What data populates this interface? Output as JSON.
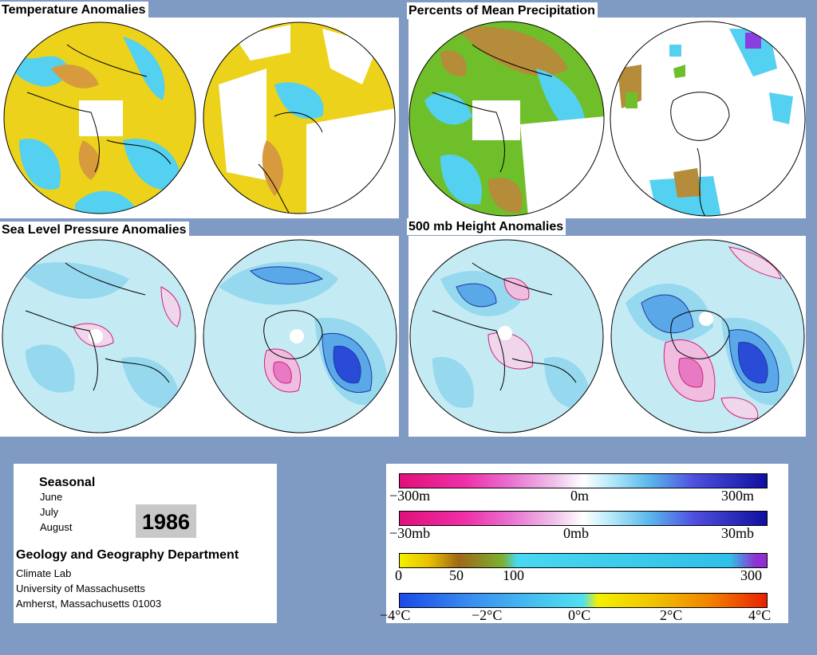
{
  "panels": {
    "temperature": {
      "title": "Temperature Anomalies"
    },
    "precipitation": {
      "title": "Percents of Mean Precipitation"
    },
    "sea_level_pressure": {
      "title": "Sea Level Pressure Anomalies"
    },
    "height_500mb": {
      "title": "500 mb Height Anomalies"
    }
  },
  "info": {
    "period_label": "Seasonal",
    "months": [
      "June",
      "July",
      "August"
    ],
    "year": "1986",
    "department": "Geology and Geography Department",
    "lab": "Climate Lab",
    "university": "University of Massachusetts",
    "address": "Amherst, Massachusetts 01003"
  },
  "legend": {
    "height_scale": {
      "labels": [
        "−300m",
        "0m",
        "300m"
      ]
    },
    "pressure_scale": {
      "labels": [
        "−30mb",
        "0mb",
        "30mb"
      ]
    },
    "precip_scale": {
      "labels": [
        "0",
        "50",
        "100",
        "300"
      ]
    },
    "temp_scale": {
      "labels": [
        "−4°C",
        "−2°C",
        "0°C",
        "2°C",
        "4°C"
      ]
    }
  },
  "colors": {
    "background": "#7f9bc4",
    "temp_warm": "#f0d000",
    "temp_cool": "#40d0f0",
    "anomaly_positive": "#1010a0",
    "anomaly_negative": "#e01080"
  }
}
